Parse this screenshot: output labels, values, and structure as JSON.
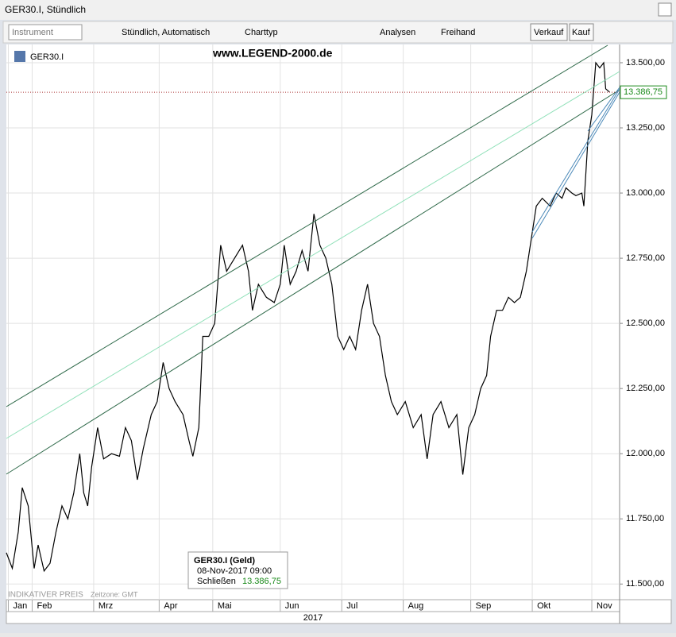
{
  "window_title": "GER30.I, Stündlich",
  "toolbar": {
    "instrument": "Instrument",
    "interval": "Stündlich, Automatisch",
    "chart_type": "Charttyp",
    "analyses": "Analysen",
    "freehand": "Freihand",
    "sell": "Verkauf",
    "buy": "Kauf"
  },
  "watermark": "www.LEGEND-2000.de",
  "footer": {
    "note": "INDIKATIVER PREIS",
    "timezone": "Zeitzone: GMT",
    "year": "2017"
  },
  "tooltip": {
    "title": "GER30.I (Geld)",
    "date": "08-Nov-2017 09:00",
    "field": "Schließen"
  },
  "chart_data": {
    "type": "line",
    "current_value": {
      "value": 13386.75,
      "label": "13.386,75"
    },
    "series": [
      {
        "name": "GER30.I",
        "color": "#000000",
        "x": [
          0,
          3,
          6,
          8,
          11,
          14,
          16,
          19,
          22,
          25,
          28,
          31,
          34,
          37,
          39,
          41,
          43,
          46,
          49,
          53,
          57,
          60,
          63,
          66,
          69,
          73,
          76,
          79,
          82,
          85,
          89,
          92,
          94,
          97,
          99,
          102,
          105,
          108,
          111,
          115,
          119,
          122,
          124,
          127,
          131,
          135,
          138,
          140,
          143,
          146,
          149,
          152,
          155,
          158,
          161,
          164,
          167,
          170,
          173,
          176,
          179,
          182,
          185,
          188,
          191,
          194,
          197,
          201,
          205,
          209,
          212,
          215,
          219,
          223,
          227,
          230,
          233,
          236,
          239,
          242,
          244,
          247,
          250,
          253,
          256,
          259,
          262,
          265,
          267,
          270,
          274,
          277,
          280,
          282,
          285,
          287,
          290,
          291,
          293,
          295,
          297,
          299,
          301,
          302,
          304
        ],
        "values": [
          11620,
          11560,
          11700,
          11870,
          11800,
          11560,
          11650,
          11550,
          11580,
          11700,
          11800,
          11750,
          11850,
          12000,
          11850,
          11800,
          11950,
          12100,
          11980,
          12000,
          11990,
          12100,
          12050,
          11900,
          12020,
          12150,
          12200,
          12350,
          12250,
          12200,
          12150,
          12050,
          11990,
          12100,
          12450,
          12450,
          12500,
          12800,
          12700,
          12750,
          12800,
          12700,
          12550,
          12650,
          12600,
          12580,
          12650,
          12800,
          12650,
          12700,
          12780,
          12700,
          12920,
          12800,
          12750,
          12650,
          12450,
          12400,
          12450,
          12400,
          12550,
          12650,
          12500,
          12450,
          12300,
          12200,
          12150,
          12200,
          12100,
          12150,
          11980,
          12150,
          12200,
          12100,
          12150,
          11920,
          12100,
          12150,
          12250,
          12300,
          12450,
          12550,
          12550,
          12600,
          12580,
          12600,
          12700,
          12850,
          12950,
          12980,
          12950,
          13000,
          12980,
          13020,
          13000,
          12990,
          13000,
          12950,
          13200,
          13300,
          13500,
          13480,
          13500,
          13400,
          13386.75
        ]
      }
    ],
    "xlim": [
      0,
      309
    ],
    "xticks": [
      {
        "value": 1,
        "label": "Jan"
      },
      {
        "value": 13,
        "label": "Feb"
      },
      {
        "value": 44,
        "label": "Mrz"
      },
      {
        "value": 77,
        "label": "Apr"
      },
      {
        "value": 104,
        "label": "Mai"
      },
      {
        "value": 138,
        "label": "Jun"
      },
      {
        "value": 169,
        "label": "Jul"
      },
      {
        "value": 200,
        "label": "Aug"
      },
      {
        "value": 234,
        "label": "Sep"
      },
      {
        "value": 265,
        "label": "Okt"
      },
      {
        "value": 295,
        "label": "Nov"
      }
    ],
    "ylim": [
      11440,
      13570
    ],
    "yticks": [
      {
        "value": 11500,
        "label": "11.500,00"
      },
      {
        "value": 11750,
        "label": "11.750,00"
      },
      {
        "value": 12000,
        "label": "12.000,00"
      },
      {
        "value": 12250,
        "label": "12.250,00"
      },
      {
        "value": 12500,
        "label": "12.500,00"
      },
      {
        "value": 12750,
        "label": "12.750,00"
      },
      {
        "value": 13000,
        "label": "13.000,00"
      },
      {
        "value": 13250,
        "label": "13.250,00"
      },
      {
        "value": 13500,
        "label": "13.500,00"
      }
    ],
    "grid": true
  }
}
